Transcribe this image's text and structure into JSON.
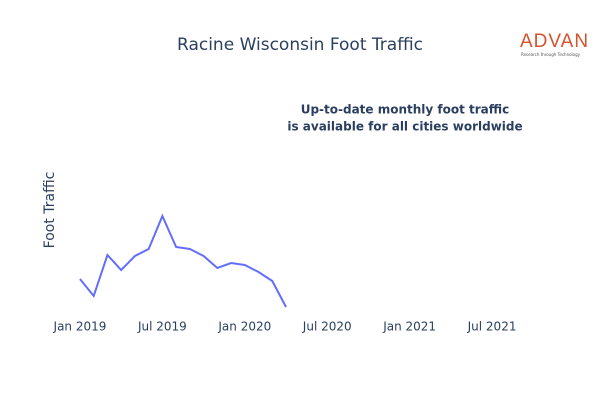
{
  "chart_data": {
    "type": "line",
    "title": "Racine Wisconsin Foot Traffic",
    "y_label": "Foot Traffic",
    "annotation": [
      "Up-to-date monthly foot traffic",
      "is available for all cities worldwide"
    ],
    "logo": {
      "name": "ADVAN",
      "tagline": "Research through Technology"
    },
    "x": [
      "2019-01",
      "2019-02",
      "2019-03",
      "2019-04",
      "2019-05",
      "2019-06",
      "2019-07",
      "2019-08",
      "2019-09",
      "2019-10",
      "2019-11",
      "2019-12",
      "2020-01",
      "2020-02",
      "2020-03",
      "2020-04"
    ],
    "series": [
      {
        "name": "Foot Traffic",
        "color": "#636efa",
        "values": [
          33,
          16,
          57,
          42,
          56,
          63,
          96,
          65,
          63,
          56,
          44,
          49,
          47,
          40,
          31,
          5
        ]
      }
    ],
    "xlim": [
      "2018-11",
      "2021-11"
    ],
    "xticks": [
      {
        "value": "2019-01",
        "label": "Jan 2019"
      },
      {
        "value": "2019-07",
        "label": "Jul 2019"
      },
      {
        "value": "2020-01",
        "label": "Jan 2020"
      },
      {
        "value": "2020-07",
        "label": "Jul 2020"
      },
      {
        "value": "2021-01",
        "label": "Jan 2021"
      },
      {
        "value": "2021-07",
        "label": "Jul 2021"
      }
    ],
    "ylim": [
      0,
      110
    ]
  }
}
